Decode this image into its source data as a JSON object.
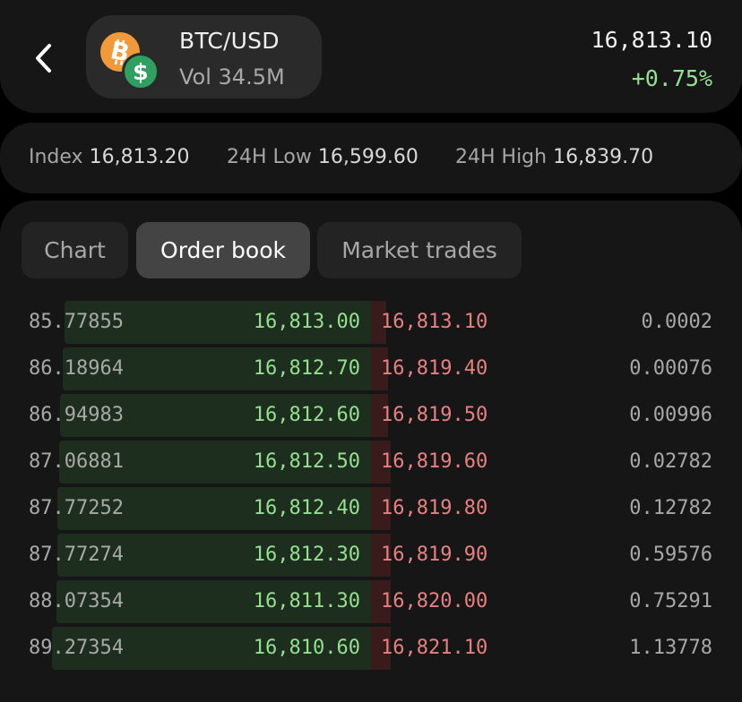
{
  "header": {
    "back_icon": "chevron-left-icon",
    "pair": "BTC/USD",
    "volume": "Vol 34.5M",
    "base_icon": "bitcoin-icon",
    "quote_icon": "dollar-icon",
    "last_price": "16,813.10",
    "change": "+0.75%",
    "change_color": "#93e08f"
  },
  "stats": {
    "index_label": "Index",
    "index_value": "16,813.20",
    "low_label": "24H Low",
    "low_value": "16,599.60",
    "high_label": "24H High",
    "high_value": "16,839.70"
  },
  "tabs": [
    {
      "label": "Chart",
      "active": false
    },
    {
      "label": "Order book",
      "active": true
    },
    {
      "label": "Market trades",
      "active": false
    }
  ],
  "order_book": {
    "bid_color": "#93e08f",
    "ask_color": "#e88080",
    "rows": [
      {
        "bid_size": "85.77855",
        "bid_price": "16,813.00",
        "ask_price": "16,813.10",
        "ask_size": "0.0002",
        "bid_depth": 0.827,
        "ask_depth": 0.04
      },
      {
        "bid_size": "86.18964",
        "bid_price": "16,812.70",
        "ask_price": "16,819.40",
        "ask_size": "0.00076",
        "bid_depth": 0.831,
        "ask_depth": 0.046
      },
      {
        "bid_size": "86.94983",
        "bid_price": "16,812.60",
        "ask_price": "16,819.50",
        "ask_size": "0.00996",
        "bid_depth": 0.839,
        "ask_depth": 0.046
      },
      {
        "bid_size": "87.06881",
        "bid_price": "16,812.50",
        "ask_price": "16,819.60",
        "ask_size": "0.02782",
        "bid_depth": 0.84,
        "ask_depth": 0.052
      },
      {
        "bid_size": "87.77252",
        "bid_price": "16,812.40",
        "ask_price": "16,819.80",
        "ask_size": "0.12782",
        "bid_depth": 0.846,
        "ask_depth": 0.052
      },
      {
        "bid_size": "87.77274",
        "bid_price": "16,812.30",
        "ask_price": "16,819.90",
        "ask_size": "0.59576",
        "bid_depth": 0.846,
        "ask_depth": 0.052
      },
      {
        "bid_size": "88.07354",
        "bid_price": "16,811.30",
        "ask_price": "16,820.00",
        "ask_size": "0.75291",
        "bid_depth": 0.849,
        "ask_depth": 0.052
      },
      {
        "bid_size": "89.27354",
        "bid_price": "16,810.60",
        "ask_price": "16,821.10",
        "ask_size": "1.13778",
        "bid_depth": 0.861,
        "ask_depth": 0.052
      }
    ]
  }
}
